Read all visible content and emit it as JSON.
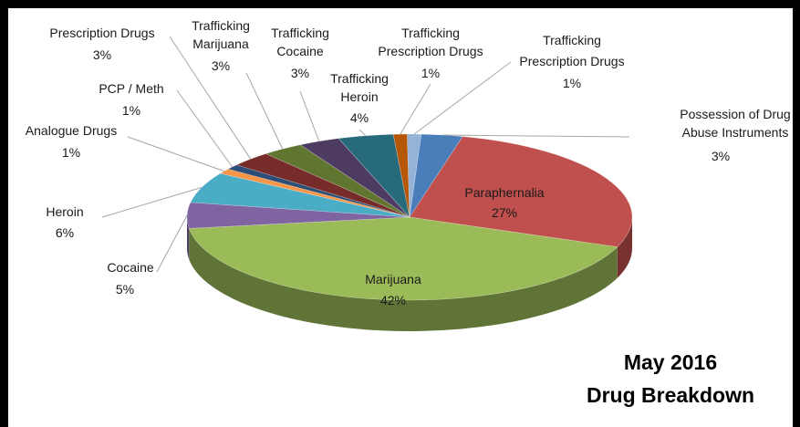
{
  "chart_data": {
    "type": "pie",
    "title_line1": "May 2016",
    "title_line2": "Drug Breakdown",
    "slices": [
      {
        "label": "Possession of Drug Abuse Instruments",
        "value": 3,
        "pct": "3%",
        "color": "#4a7ebb"
      },
      {
        "label": "Paraphernalia",
        "value": 27,
        "pct": "27%",
        "color": "#c0504d"
      },
      {
        "label": "Marijuana",
        "value": 42,
        "pct": "42%",
        "color": "#9bbb59"
      },
      {
        "label": "Cocaine",
        "value": 5,
        "pct": "5%",
        "color": "#8064a2"
      },
      {
        "label": "Heroin",
        "value": 6,
        "pct": "6%",
        "color": "#4bacc6"
      },
      {
        "label": "Analogue Drugs",
        "value": 1,
        "pct": "1%",
        "color": "#f79646"
      },
      {
        "label": "PCP / Meth",
        "value": 1,
        "pct": "1%",
        "color": "#2c4d75"
      },
      {
        "label": "Prescription Drugs",
        "value": 3,
        "pct": "3%",
        "color": "#772c2a"
      },
      {
        "label": "Trafficking Marijuana",
        "value": 3,
        "pct": "3%",
        "color": "#5f7530"
      },
      {
        "label": "Trafficking Cocaine",
        "value": 3,
        "pct": "3%",
        "color": "#4d3b62"
      },
      {
        "label": "Trafficking Heroin",
        "value": 4,
        "pct": "4%",
        "color": "#276a7c"
      },
      {
        "label": "Trafficking Prescription Drugs",
        "value": 1,
        "pct": "1%",
        "color": "#b65708"
      },
      {
        "label": "Trafficking Prescription Drugs",
        "value": 1,
        "pct": "1%",
        "color": "#95b3d7"
      }
    ]
  }
}
